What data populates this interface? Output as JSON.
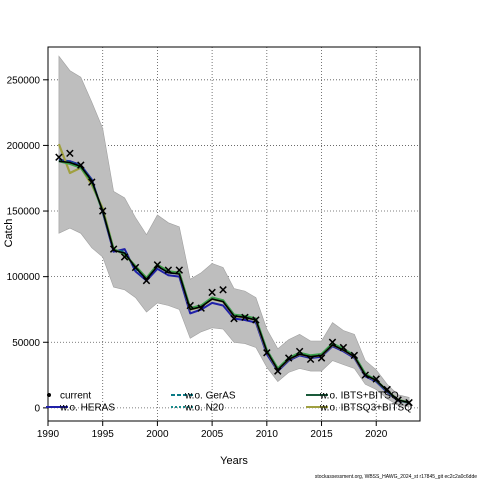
{
  "chart_data": {
    "type": "line",
    "title": "",
    "xlabel": "Years",
    "ylabel": "Catch",
    "xlim": [
      1990,
      2024
    ],
    "ylim": [
      -10000,
      275000
    ],
    "x_ticks": [
      1990,
      1995,
      2000,
      2005,
      2010,
      2015,
      2020
    ],
    "x_tick_labels": [
      "1990",
      "1995",
      "2000",
      "2005",
      "2010",
      "2015",
      "2020"
    ],
    "y_ticks": [
      0,
      50000,
      100000,
      150000,
      200000,
      250000
    ],
    "y_tick_labels": [
      "0",
      "50000",
      "100000",
      "150000",
      "200000",
      "250000"
    ],
    "grid": true,
    "legend_position": "bottom",
    "footnote": "stockassessment.org, WBSS_HAWG_2024_st r17845_git ec2c2a0c6dde",
    "band": {
      "x": [
        1991,
        1992,
        1993,
        1994,
        1995,
        1996,
        1997,
        1998,
        1999,
        2000,
        2001,
        2002,
        2003,
        2004,
        2005,
        2006,
        2007,
        2008,
        2009,
        2010,
        2011,
        2012,
        2013,
        2014,
        2015,
        2016,
        2017,
        2018,
        2019,
        2020,
        2021,
        2022,
        2023
      ],
      "upper": [
        268000,
        257000,
        252000,
        233000,
        213000,
        165000,
        160000,
        145000,
        132000,
        147000,
        141000,
        138000,
        98000,
        103000,
        110000,
        107000,
        91000,
        89000,
        84000,
        60000,
        45000,
        52000,
        56000,
        51000,
        51000,
        65000,
        59000,
        56000,
        36000,
        29000,
        18000,
        10000,
        8000
      ],
      "lower": [
        133000,
        137000,
        133000,
        122000,
        115000,
        92000,
        90000,
        84000,
        73000,
        80000,
        78000,
        75000,
        53000,
        58000,
        61000,
        60000,
        50000,
        49000,
        46000,
        31000,
        20000,
        27000,
        30000,
        28000,
        28000,
        36000,
        33000,
        30000,
        18000,
        14000,
        7000,
        2000,
        1000
      ],
      "color": "#bebebe"
    },
    "points": {
      "name": "observed",
      "marker": "x",
      "x": [
        1991,
        1992,
        1993,
        1994,
        1995,
        1996,
        1997,
        1998,
        1999,
        2000,
        2001,
        2002,
        2003,
        2004,
        2005,
        2006,
        2007,
        2008,
        2009,
        2010,
        2011,
        2012,
        2013,
        2014,
        2015,
        2016,
        2017,
        2018,
        2019,
        2020,
        2021,
        2022,
        2023
      ],
      "y": [
        191000,
        194000,
        185000,
        172000,
        150000,
        121000,
        115000,
        107000,
        97000,
        109000,
        105000,
        105000,
        78000,
        76000,
        88000,
        90000,
        68000,
        69000,
        67000,
        42000,
        28000,
        38000,
        43000,
        37000,
        38000,
        50000,
        46000,
        40000,
        25000,
        22000,
        14000,
        6000,
        4000
      ]
    },
    "x": [
      1991,
      1992,
      1993,
      1994,
      1995,
      1996,
      1997,
      1998,
      1999,
      2000,
      2001,
      2002,
      2003,
      2004,
      2005,
      2006,
      2007,
      2008,
      2009,
      2010,
      2011,
      2012,
      2013,
      2014,
      2015,
      2016,
      2017,
      2018,
      2019,
      2020,
      2021,
      2022,
      2023
    ],
    "series": [
      {
        "name": "current",
        "color": "#000000",
        "dash": "",
        "width": 1.6,
        "values": [
          188000,
          187000,
          184000,
          173000,
          150000,
          120000,
          118000,
          107000,
          98000,
          108000,
          103000,
          102000,
          75000,
          77000,
          83000,
          81000,
          70000,
          69000,
          67000,
          43000,
          29000,
          37000,
          41000,
          39000,
          40000,
          48000,
          44000,
          39000,
          25000,
          21000,
          13000,
          6000,
          4000
        ]
      },
      {
        "name": "w.o. HERAS",
        "color": "#2020a8",
        "dash": "",
        "width": 2,
        "values": [
          189000,
          188000,
          185000,
          174000,
          149000,
          119000,
          121000,
          104000,
          97000,
          106000,
          101000,
          100000,
          72000,
          75000,
          80000,
          78000,
          68000,
          67000,
          65000,
          41000,
          28000,
          36000,
          40000,
          38000,
          39000,
          47000,
          43000,
          38000,
          24000,
          20000,
          12000,
          5500,
          3800
        ]
      },
      {
        "name": "w.o. GerAS",
        "color": "#0a7a85",
        "dash": "4,2",
        "width": 1.6,
        "values": [
          188500,
          187500,
          184500,
          173500,
          150500,
          120500,
          119000,
          106000,
          98000,
          108000,
          103000,
          102000,
          75000,
          77000,
          83000,
          81000,
          70000,
          69000,
          67000,
          43000,
          29000,
          37000,
          41000,
          39000,
          40000,
          48000,
          44000,
          39000,
          25000,
          21000,
          13000,
          6000,
          4000
        ]
      },
      {
        "name": "w.o. N20",
        "color": "#1a8a8a",
        "dash": "2,2",
        "width": 1.6,
        "values": [
          188000,
          187000,
          184000,
          173000,
          150000,
          120000,
          118000,
          107000,
          98000,
          108000,
          103000,
          102000,
          75000,
          77000,
          83000,
          81000,
          70000,
          69000,
          67000,
          43000,
          29000,
          37000,
          41000,
          39000,
          40000,
          48000,
          44000,
          39000,
          25000,
          21000,
          13000,
          6000,
          4000
        ]
      },
      {
        "name": "w.o. IBTS+BITSQ",
        "color": "#3aa04a",
        "dash": "",
        "width": 2.2,
        "values": [
          188000,
          186000,
          183000,
          172000,
          150000,
          121000,
          117000,
          108000,
          99000,
          109000,
          104000,
          103000,
          76000,
          78000,
          84000,
          82000,
          71000,
          70000,
          68000,
          44000,
          30000,
          38000,
          42000,
          40000,
          41000,
          49000,
          45000,
          40000,
          26000,
          21000,
          13000,
          6000,
          4000
        ]
      },
      {
        "name": "w.o. IBTSQ3+BITSQ",
        "color": "#a0a040",
        "dash": "",
        "width": 2.2,
        "values": [
          201000,
          179000,
          183000,
          170000,
          152000,
          121000,
          117000,
          108000,
          99000,
          109000,
          104000,
          103000,
          75000,
          77000,
          83000,
          81000,
          70000,
          69000,
          67000,
          43000,
          29000,
          37000,
          41000,
          39000,
          40000,
          48000,
          44000,
          39000,
          25000,
          21000,
          13000,
          6000,
          4000
        ]
      }
    ],
    "legend": [
      {
        "label": "current",
        "style": "dot",
        "color": "#000000"
      },
      {
        "label": "w.o. HERAS",
        "style": "line",
        "color": "#2020a8"
      },
      {
        "label": "w.o. GerAS",
        "style": "dashed",
        "color": "#0a7a85"
      },
      {
        "label": "w.o. N20",
        "style": "dotted",
        "color": "#1a8a8a"
      },
      {
        "label": "w.o. IBTS+BITSQ",
        "style": "line",
        "color": "#1a5a3a"
      },
      {
        "label": "w.o. IBTSQ3+BITSQ",
        "style": "line",
        "color": "#a0a040"
      }
    ]
  }
}
